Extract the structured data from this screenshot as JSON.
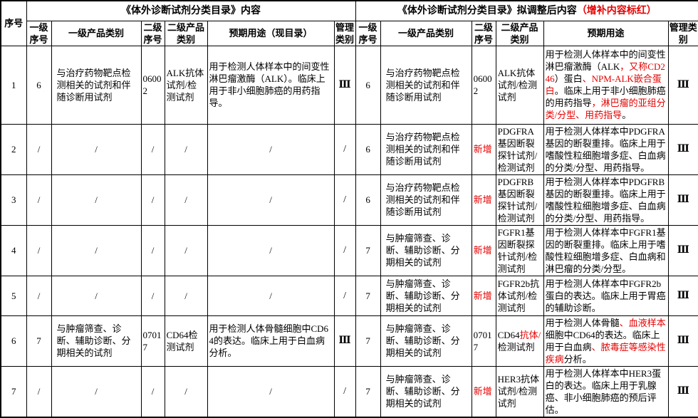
{
  "colors": {
    "red": "#e60000",
    "border": "#000000",
    "background": "#ffffff"
  },
  "table": {
    "header": {
      "serial": "序号",
      "current_group": "《体外诊断试剂分类目录》内容",
      "proposed_group": "《体外诊断试剂分类目录》拟调整后内容",
      "proposed_group_red": "（增补内容标红）",
      "columns_current": [
        "一级序号",
        "一级产品类别",
        "二级序号",
        "二级产品类别",
        "预期用途（现目录）",
        "管理类别"
      ],
      "columns_proposed": [
        "一级序号",
        "一级产品类别",
        "二级序号",
        "二级产品类别",
        "预期用途",
        "管理类别"
      ]
    },
    "rows": [
      {
        "serial": "1",
        "left": {
          "l1_no": "6",
          "l1_cat": "与治疗药物靶点检测相关的试剂和伴随诊断用试剂",
          "l2_no": "06002",
          "l2_cat": "ALK抗体试剂/检测试剂",
          "use": "用于检测人体样本中的间变性淋巴瘤激酶（ALK）。临床上用于非小细胞肺癌的用药指导。",
          "cls": "Ⅲ"
        },
        "right": {
          "l1_no": "6",
          "l1_cat": "与治疗药物靶点检测相关的试剂和伴随诊断用试剂",
          "l2_no": "06002",
          "l2_cat": "ALK抗体试剂/检测试剂",
          "use": [
            {
              "t": "用于检测人体样本中的间变性淋巴瘤激酶（ALK",
              "red": false
            },
            {
              "t": "，又称CD246",
              "red": true
            },
            {
              "t": "）蛋白",
              "red": false
            },
            {
              "t": "、NPM-ALK嵌合蛋白",
              "red": true
            },
            {
              "t": "。临床上用于非小细胞肺癌的用药指导",
              "red": false
            },
            {
              "t": "，淋巴瘤的亚组分类/分型、用药指导",
              "red": true
            },
            {
              "t": "。",
              "red": false
            }
          ],
          "cls": "Ⅲ"
        }
      },
      {
        "serial": "2",
        "left": {
          "l1_no": "/",
          "l1_cat": "/",
          "l2_no": "/",
          "l2_cat": "/",
          "use": "/",
          "cls": "/"
        },
        "right": {
          "l1_no": "6",
          "l1_cat": "与治疗药物靶点检测相关的试剂和伴随诊断用试剂",
          "l2_no": [
            {
              "t": "新增",
              "red": true
            }
          ],
          "l2_cat": "PDGFRA基因断裂探针试剂/检测试剂",
          "use": "用于检测人体样本中PDGFRA基因的断裂重排。临床上用于嗜酸性粒细胞增多症、白血病的分类/分型、用药指导。",
          "cls": "Ⅲ"
        }
      },
      {
        "serial": "3",
        "left": {
          "l1_no": "/",
          "l1_cat": "/",
          "l2_no": "/",
          "l2_cat": "/",
          "use": "/",
          "cls": "/"
        },
        "right": {
          "l1_no": "6",
          "l1_cat": "与治疗药物靶点检测相关的试剂和伴随诊断用试剂",
          "l2_no": [
            {
              "t": "新增",
              "red": true
            }
          ],
          "l2_cat": "PDGFRB基因断裂探针试剂/检测试剂",
          "use": "用于检测人体样本中PDGFRB基因的断裂重排。临床上用于嗜酸性粒细胞增多症、白血病的分类/分型、用药指导。",
          "cls": "Ⅲ"
        }
      },
      {
        "serial": "4",
        "left": {
          "l1_no": "/",
          "l1_cat": "/",
          "l2_no": "/",
          "l2_cat": "/",
          "use": "/",
          "cls": "/"
        },
        "right": {
          "l1_no": "7",
          "l1_cat": "与肿瘤筛查、诊断、辅助诊断、分期相关的试剂",
          "l2_no": [
            {
              "t": "新增",
              "red": true
            }
          ],
          "l2_cat": "FGFR1基因断裂探针试剂/检测试剂",
          "use": "用于检测人体样本中FGFR1基因的断裂重排。临床上用于嗜酸性粒细胞增多症、白血病和淋巴瘤的分类/分型。",
          "cls": "Ⅲ"
        }
      },
      {
        "serial": "5",
        "left": {
          "l1_no": "/",
          "l1_cat": "/",
          "l2_no": "/",
          "l2_cat": "/",
          "use": "/",
          "cls": "/"
        },
        "right": {
          "l1_no": "7",
          "l1_cat": "与肿瘤筛查、诊断、辅助诊断、分期相关的试剂",
          "l2_no": [
            {
              "t": "新增",
              "red": true
            }
          ],
          "l2_cat": "FGFR2b抗体试剂/检测试剂",
          "use": "用于检测人体样本中FGFR2b蛋白的表达。临床上用于胃癌的辅助诊断。",
          "cls": "Ⅲ"
        }
      },
      {
        "serial": "6",
        "left": {
          "l1_no": "7",
          "l1_cat": "与肿瘤筛查、诊断、辅助诊断、分期相关的试剂",
          "l2_no": "07017",
          "l2_cat": "CD64检测试剂",
          "use": "用于检测人体骨髓细胞中CD64的表达。临床上用于白血病分析。",
          "cls": "Ⅲ"
        },
        "right": {
          "l1_no": "7",
          "l1_cat": "与肿瘤筛查、诊断、辅助诊断、分期相关的试剂",
          "l2_no": "07017",
          "l2_cat": [
            {
              "t": "CD64",
              "red": false
            },
            {
              "t": "抗体/",
              "red": true
            },
            {
              "t": "检测试剂",
              "red": false
            }
          ],
          "use": [
            {
              "t": "用于检测人体骨髓",
              "red": false
            },
            {
              "t": "、血液样本",
              "red": true
            },
            {
              "t": "细胞中CD64的表达。临床上用于白血病",
              "red": false
            },
            {
              "t": "、脓毒症等感染性疾病",
              "red": true
            },
            {
              "t": "分析。",
              "red": false
            }
          ],
          "cls": "Ⅲ"
        }
      },
      {
        "serial": "7",
        "left": {
          "l1_no": "/",
          "l1_cat": "/",
          "l2_no": "/",
          "l2_cat": "/",
          "use": "/",
          "cls": "/"
        },
        "right": {
          "l1_no": "7",
          "l1_cat": "与肿瘤筛查、诊断、辅助诊断、分期相关的试剂",
          "l2_no": [
            {
              "t": "新增",
              "red": true
            }
          ],
          "l2_cat": "HER3抗体试剂/检测试剂",
          "use": "用于检测人体样本中HER3蛋白的表达。临床上用于乳腺癌、非小细胞肺癌的预后评估。",
          "cls": "Ⅲ"
        }
      }
    ]
  }
}
